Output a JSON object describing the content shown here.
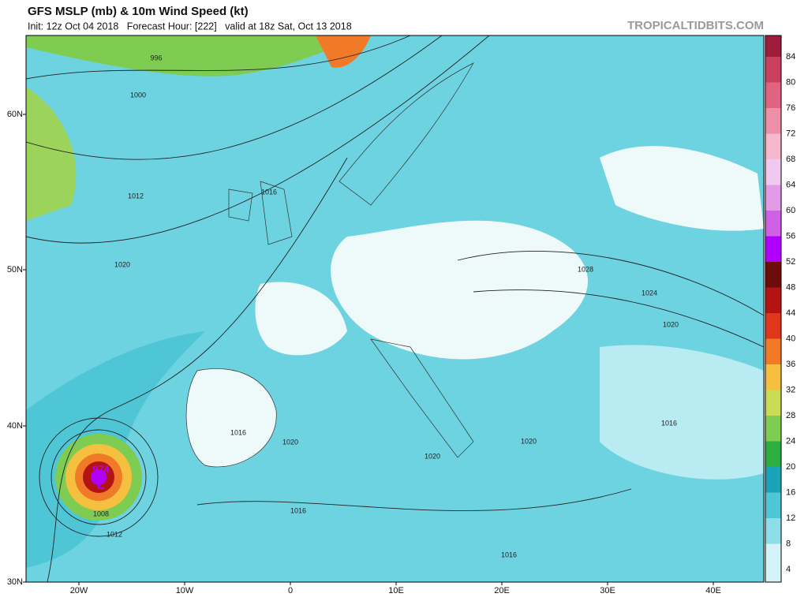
{
  "header": {
    "title": "GFS MSLP (mb) & 10m Wind Speed (kt)",
    "subtitle": "Init: 12z Oct 04 2018   Forecast Hour: [222]   valid at 18z Sat, Oct 13 2018",
    "site": "TROPICALTIDBITS.COM"
  },
  "axes": {
    "lat": [
      "60N",
      "50N",
      "40N",
      "30N"
    ],
    "lon": [
      "20W",
      "10W",
      "0",
      "10E",
      "20E",
      "30E",
      "40E"
    ]
  },
  "colorbar": [
    {
      "label": "84",
      "color": "#9e1c3c"
    },
    {
      "label": "80",
      "color": "#c8405e"
    },
    {
      "label": "76",
      "color": "#e06482"
    },
    {
      "label": "72",
      "color": "#ee8fa8"
    },
    {
      "label": "68",
      "color": "#f5b8cc"
    },
    {
      "label": "64",
      "color": "#f0c8f0"
    },
    {
      "label": "60",
      "color": "#e39ae8"
    },
    {
      "label": "56",
      "color": "#d060e6"
    },
    {
      "label": "52",
      "color": "#b000ff"
    },
    {
      "label": "48",
      "color": "#6e0b0b"
    },
    {
      "label": "44",
      "color": "#b31313"
    },
    {
      "label": "40",
      "color": "#e0361c"
    },
    {
      "label": "36",
      "color": "#f07a28"
    },
    {
      "label": "32",
      "color": "#f5c040"
    },
    {
      "label": "28",
      "color": "#c9dc55"
    },
    {
      "label": "24",
      "color": "#7fcc52"
    },
    {
      "label": "20",
      "color": "#2fae40"
    },
    {
      "label": "16",
      "color": "#1aa3b8"
    },
    {
      "label": "12",
      "color": "#4ec6d6"
    },
    {
      "label": "8",
      "color": "#8edde8"
    },
    {
      "label": "4",
      "color": "#d4f3f6"
    }
  ],
  "isobars": [
    "996",
    "1000",
    "1012",
    "1016",
    "1020",
    "1028",
    "1024",
    "1020",
    "1016",
    "1020",
    "1020",
    "1020",
    "1016",
    "1016",
    "1008",
    "1012",
    "1016",
    "974",
    "L"
  ]
}
